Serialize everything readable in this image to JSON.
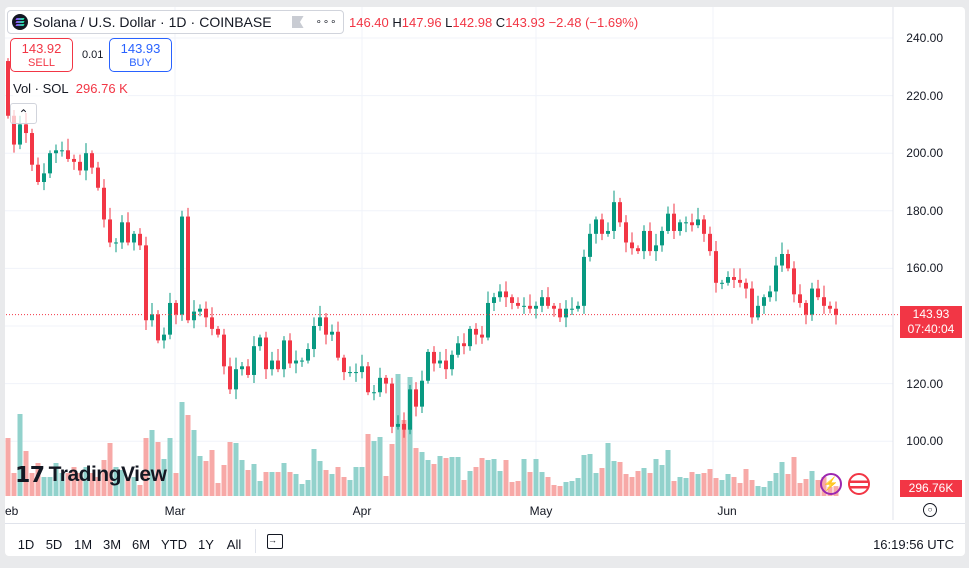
{
  "header": {
    "symbol": "Solana / U.S. Dollar",
    "interval": "1D",
    "exchange": "COINBASE",
    "more": "∘∘∘",
    "open": "146.40",
    "high_label": "H",
    "high": "147.96",
    "low_label": "L",
    "low": "142.98",
    "close_label": "C",
    "close": "143.93",
    "change": "−2.48 (−1.69%)"
  },
  "trade": {
    "sell_price": "143.92",
    "sell_label": "SELL",
    "spread": "0.01",
    "buy_price": "143.93",
    "buy_label": "BUY"
  },
  "volume_legend": {
    "label": "Vol · SOL",
    "value": "296.76 K"
  },
  "price_axis": {
    "labels": [
      "240.00",
      "220.00",
      "200.00",
      "180.00",
      "160.00",
      "120.00",
      "100.00"
    ],
    "last_price": "143.93",
    "countdown": "07:40:04",
    "last_volume": "296.76K"
  },
  "time_axis": {
    "labels": [
      "eb",
      "Mar",
      "Apr",
      "May",
      "Jun"
    ]
  },
  "range_bar": {
    "buttons": [
      "1D",
      "5D",
      "1M",
      "3M",
      "6M",
      "YTD",
      "1Y",
      "All"
    ],
    "clock": "16:19:56 UTC"
  },
  "logo": "TradingView",
  "colors": {
    "up": "#089981",
    "down": "#f23645",
    "vol_up": "#92d2cc",
    "vol_down": "#f7a9a7"
  },
  "chart_data": {
    "type": "candlestick",
    "title": "Solana / U.S. Dollar · 1D · COINBASE",
    "ylim": [
      100,
      240
    ],
    "first_open": 232,
    "closes": [
      213,
      203,
      210,
      207,
      196,
      190,
      193,
      200,
      201,
      201,
      198,
      197,
      194,
      200,
      195,
      188,
      177,
      169,
      169,
      176,
      169,
      172,
      168,
      142,
      144,
      135,
      137,
      148,
      144,
      178,
      142,
      145,
      146,
      143,
      139,
      137,
      126,
      118,
      125,
      126,
      123,
      133,
      136,
      125,
      128,
      125,
      135,
      127,
      128,
      128,
      132,
      140,
      143,
      137,
      138,
      129,
      124,
      124,
      124,
      126,
      117,
      117,
      122,
      120,
      105,
      106,
      104,
      118,
      112,
      121,
      131,
      127,
      128,
      125,
      130,
      134,
      133,
      139,
      137,
      136,
      148,
      150,
      152,
      150,
      148,
      147,
      147,
      146,
      147,
      150,
      147,
      146,
      143,
      146,
      146,
      147,
      164,
      172,
      177,
      172,
      173,
      183,
      176,
      169,
      167,
      166,
      173,
      166,
      168,
      173,
      179,
      173,
      176,
      176,
      175,
      177,
      172,
      166,
      155,
      155,
      157,
      156,
      155,
      153,
      143,
      147,
      150,
      152,
      161,
      165,
      160,
      151,
      148,
      144,
      153,
      150,
      147,
      146,
      143.93
    ],
    "volumes_k": [
      1740,
      690,
      2460,
      1350,
      690,
      990,
      570,
      570,
      990,
      690,
      690,
      870,
      690,
      870,
      690,
      570,
      1080,
      1590,
      870,
      780,
      570,
      570,
      330,
      1740,
      1980,
      1620,
      1110,
      1740,
      690,
      2820,
      2430,
      1980,
      1200,
      1050,
      1380,
      390,
      930,
      1620,
      1590,
      1080,
      780,
      960,
      450,
      720,
      720,
      720,
      990,
      720,
      660,
      360,
      480,
      1410,
      1050,
      780,
      660,
      870,
      570,
      480,
      870,
      870,
      1860,
      1650,
      1770,
      600,
      1560,
      3660,
      2280,
      3570,
      1440,
      1320,
      1080,
      960,
      1200,
      1140,
      1170,
      1170,
      480,
      750,
      870,
      1140,
      1080,
      1110,
      750,
      1080,
      420,
      450,
      1110,
      720,
      1110,
      720,
      570,
      330,
      300,
      420,
      450,
      540,
      1230,
      1260,
      690,
      840,
      1590,
      1050,
      1020,
      660,
      570,
      750,
      840,
      690,
      1110,
      930,
      1380,
      450,
      570,
      540,
      720,
      660,
      690,
      810,
      540,
      480,
      660,
      570,
      390,
      810,
      480,
      300,
      270,
      450,
      690,
      1020,
      660,
      1170,
      390,
      510,
      750,
      480,
      570,
      270,
      296.76
    ],
    "months": [
      "Feb",
      "Mar",
      "Apr",
      "May",
      "Jun"
    ]
  }
}
